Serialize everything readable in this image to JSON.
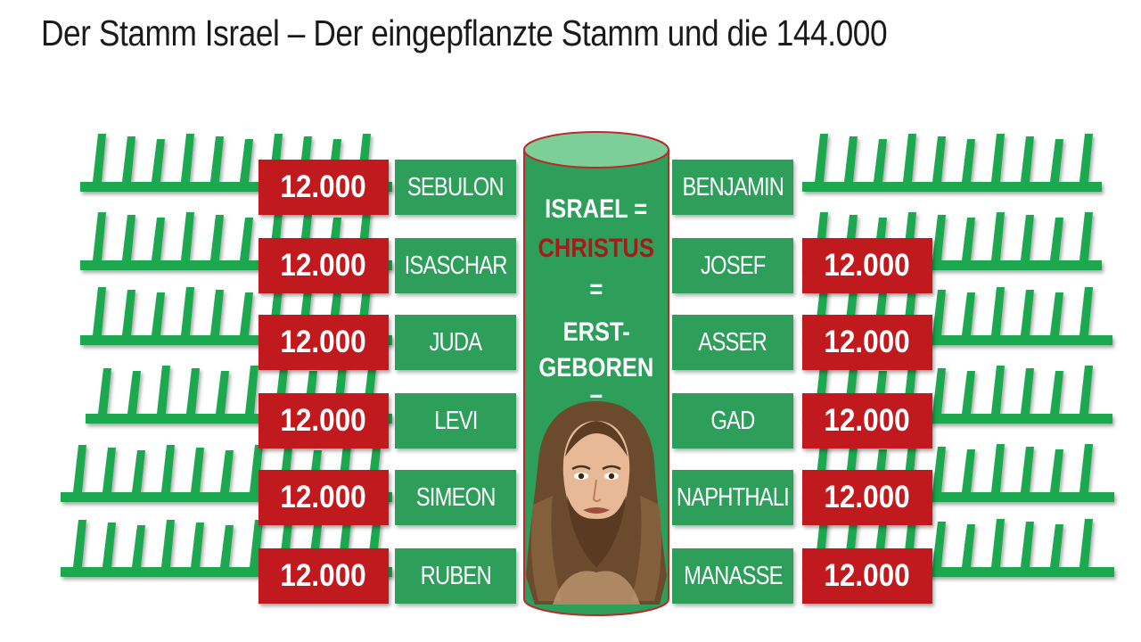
{
  "title": "Der Stamm Israel – Der eingepflanzte Stamm und die 144.000",
  "left_rows": [
    {
      "count": "12.000",
      "tribe": "SEBULON"
    },
    {
      "count": "12.000",
      "tribe": "ISASCHAR"
    },
    {
      "count": "12.000",
      "tribe": "JUDA"
    },
    {
      "count": "12.000",
      "tribe": "LEVI"
    },
    {
      "count": "12.000",
      "tribe": "SIMEON"
    },
    {
      "count": "12.000",
      "tribe": "RUBEN"
    }
  ],
  "right_rows": [
    {
      "tribe": "BENJAMIN",
      "count": ""
    },
    {
      "tribe": "JOSEF",
      "count": "12.000"
    },
    {
      "tribe": "ASSER",
      "count": "12.000"
    },
    {
      "tribe": "GAD",
      "count": "12.000"
    },
    {
      "tribe": "NAPHTHALI",
      "count": "12.000"
    },
    {
      "tribe": "MANASSE",
      "count": "12.000"
    }
  ],
  "pillar": {
    "line1": "ISRAEL =",
    "line2": "CHRISTUS",
    "line3": "=",
    "line4": "ERST-",
    "line5": "GEBOREN",
    "line6": "="
  },
  "colors": {
    "green": "#2e9e5b",
    "branch_green": "#1fa84f",
    "red": "#c0191e",
    "christus_red": "#a71a1a",
    "pillar_top": "#7ccf99"
  },
  "icons": [
    "olive-branch-icon",
    "jesus-portrait-icon"
  ]
}
